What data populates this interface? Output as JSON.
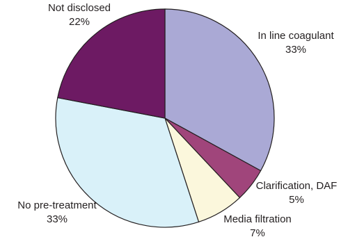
{
  "chart_data": {
    "type": "pie",
    "categories": [
      "In line coagulant",
      "Clarification, DAF",
      "Media filtration",
      "No pre-treatment",
      "Not disclosed"
    ],
    "values": [
      33,
      5,
      7,
      33,
      22
    ],
    "value_labels": [
      "33%",
      "5%",
      "7%",
      "33%",
      "22%"
    ],
    "colors": [
      "#aaa9d5",
      "#a0457b",
      "#fbf7dc",
      "#d9f1f9",
      "#6d1a63"
    ]
  }
}
